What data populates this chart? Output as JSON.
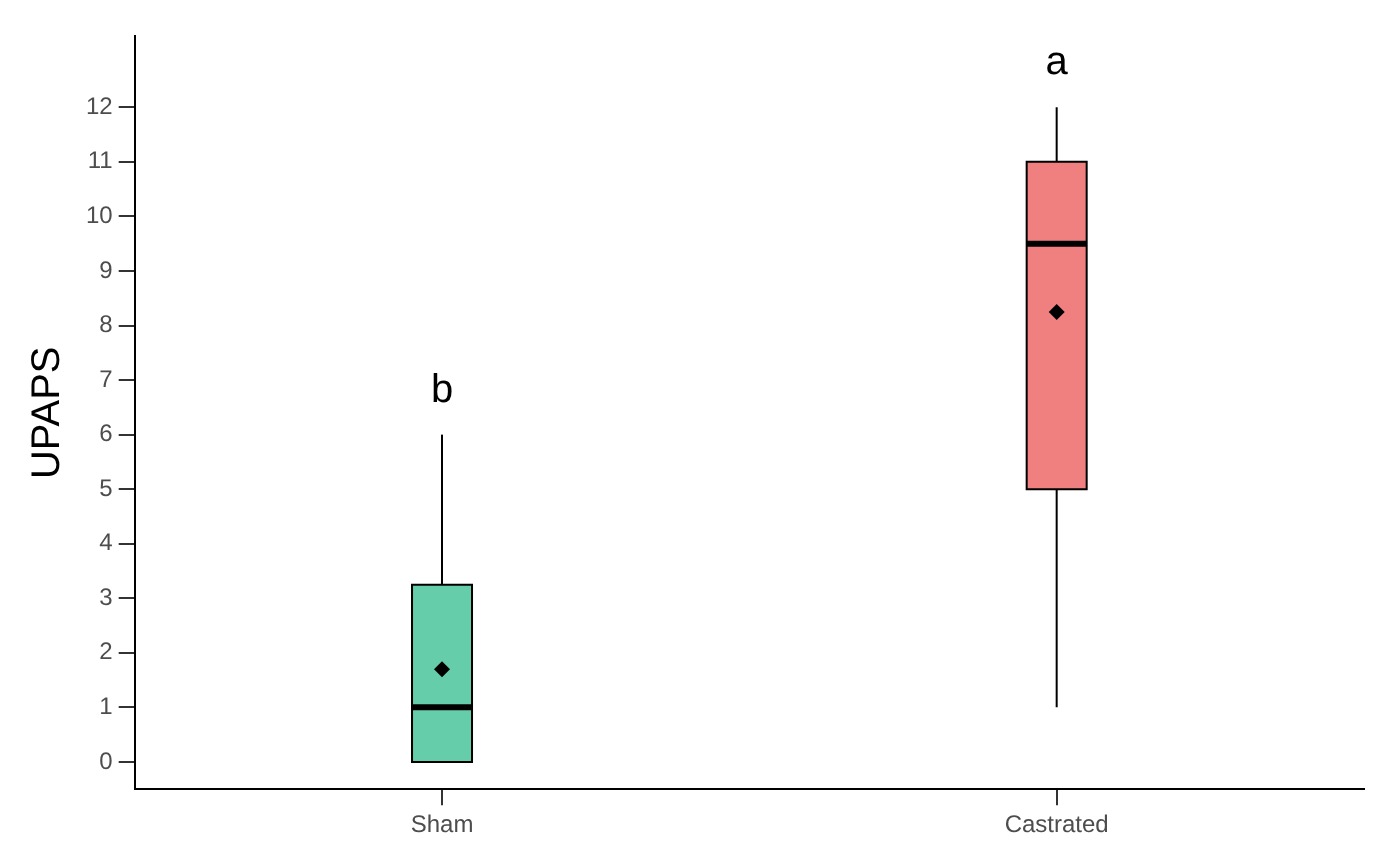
{
  "chart_data": {
    "type": "box",
    "ylabel": "UPAPS",
    "categories": [
      "Sham",
      "Castrated"
    ],
    "colors": [
      "#66cdaa",
      "#f08080"
    ],
    "boxes": [
      {
        "low": 0,
        "q1": 0,
        "median": 1,
        "q3": 3.25,
        "high": 6,
        "mean": 1.7
      },
      {
        "low": 1,
        "q1": 5,
        "median": 9.5,
        "q3": 11,
        "high": 12,
        "mean": 8.25
      }
    ],
    "ylim": [
      -0.5,
      13.3
    ],
    "yticks": [
      0,
      1,
      2,
      3,
      4,
      5,
      6,
      7,
      8,
      9,
      10,
      11,
      12
    ],
    "grid": false,
    "legend": false,
    "marker": "diamond",
    "annotations": [
      "b",
      "a"
    ]
  }
}
